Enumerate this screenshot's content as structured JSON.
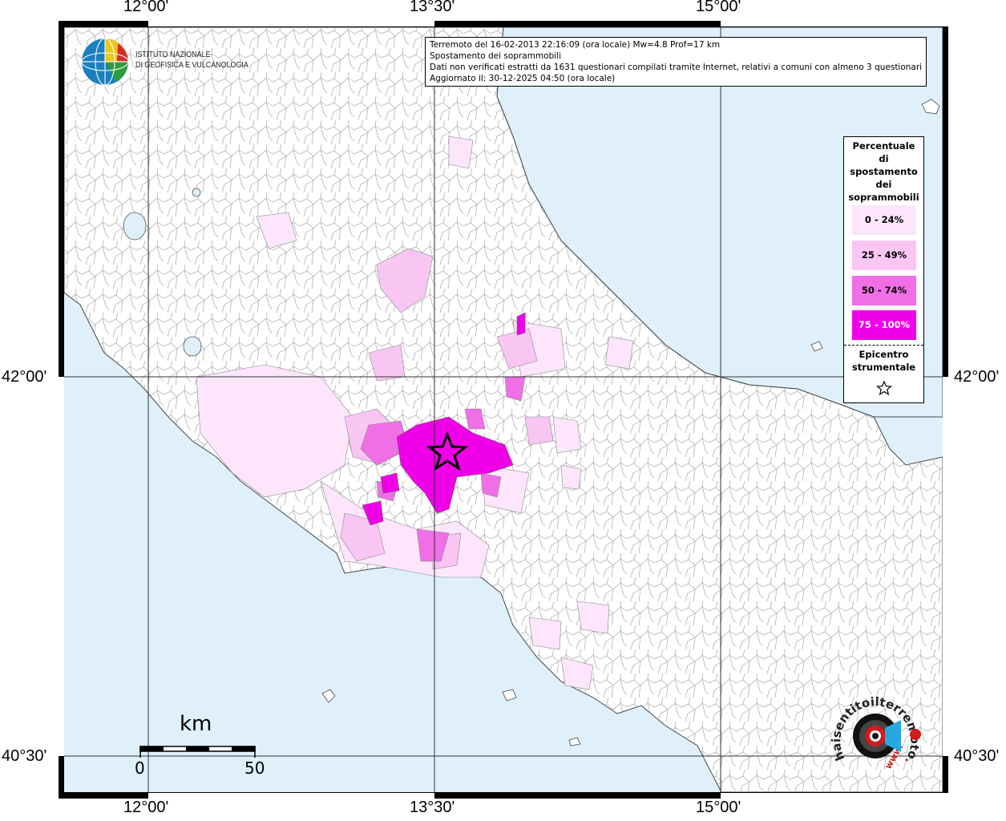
{
  "map": {
    "coords": {
      "top_labels": [
        "12°00'",
        "13°30'",
        "15°00'"
      ],
      "bottom_labels": [
        "12°00'",
        "13°30'",
        "15°00'"
      ],
      "left_labels": [
        "42°00'",
        "40°30'"
      ],
      "right_labels": [
        "42°00'",
        "40°30'"
      ]
    },
    "info": {
      "line1": "Terremoto del 16-02-2013 22:16:09 (ora locale) Mw=4.8 Prof=17 km",
      "line2": "Spostamento dei soprammobili",
      "line3": "Dati non verificati estratti da 1631 questionari compilati tramite Internet, relativi a comuni con almeno 3 questionari.",
      "line4": "Aggiornato il: 30-12-2025 04:50 (ora locale)"
    },
    "legend": {
      "title_lines": [
        "Percentuale",
        "di",
        "spostamento",
        "dei",
        "soprammobili"
      ],
      "items": [
        {
          "label": "0 - 24%",
          "color": "#fde6fb",
          "text_color": "#000000"
        },
        {
          "label": "25 - 49%",
          "color": "#f9c6f4",
          "text_color": "#000000"
        },
        {
          "label": "50 - 74%",
          "color": "#f06ee6",
          "text_color": "#000000"
        },
        {
          "label": "75 - 100%",
          "color": "#f000e8",
          "text_color": "#ffffff"
        }
      ],
      "epicenter_lines": [
        "Epicentro",
        "strumentale"
      ]
    },
    "logo": {
      "name_line1": "ISTITUTO NAZIONALE",
      "name_line2": "DI GEOFISICA E VULCANOLOGIA"
    },
    "scale": {
      "title": "km",
      "start": "0",
      "end": "50"
    },
    "colors": {
      "sea": "#dff0fb",
      "land": "#ffffff",
      "epicenter": "#000000"
    },
    "brand": {
      "text1": "haisentitoilterremoto",
      "text2": ".it",
      "text3": "www."
    }
  }
}
